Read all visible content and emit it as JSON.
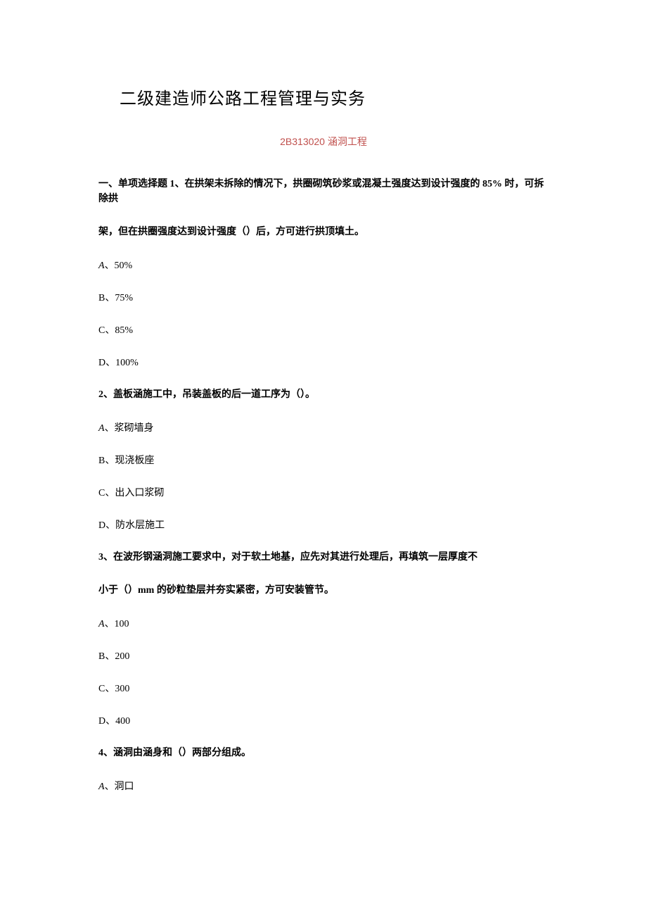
{
  "title": "二级建造师公路工程管理与实务",
  "subtitle": "2B313020 涵洞工程",
  "section_header": "一、单项选择题 1、在拱架未拆除的情况下，拱圈砌筑砂浆或混凝土强度达到设计强度的 85% 时，可拆除拱",
  "q1_line2": "架，但在拱圈强度达到设计强度（）后，方可进行拱顶填土。",
  "q1_options": {
    "a_prefix": "A",
    "a_text": "、50%",
    "b": "B、75%",
    "c": "C、85%",
    "d": "D、100%"
  },
  "q2_text": "2、盖板涵施工中，吊装盖板的后一道工序为（）。",
  "q2_options": {
    "a_prefix": "A",
    "a_text": "、浆砌墙身",
    "b": "B、现浇板座",
    "c": "C、出入口浆砌",
    "d": "D、防水层施工"
  },
  "q3_line1": "3、在波形钢涵洞施工要求中，对于软土地基，应先对其进行处理后，再填筑一层厚度不",
  "q3_line2": "小于（）mm 的砂粒垫层并夯实紧密，方可安装管节。",
  "q3_options": {
    "a_prefix": "A",
    "a_text": "、100",
    "b": "B、200",
    "c": "C、300",
    "d": "D、400"
  },
  "q4_text": "4、涵洞由涵身和（）两部分组成。",
  "q4_options": {
    "a_prefix": "A",
    "a_text": "、洞口"
  }
}
